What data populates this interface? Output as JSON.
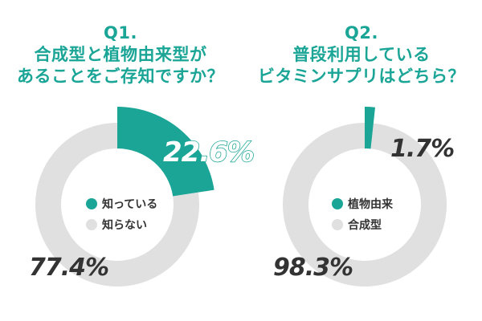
{
  "colors": {
    "accent": "#1aa596",
    "muted": "#e0e0e0",
    "text": "#333333"
  },
  "chart_data": [
    {
      "type": "pie",
      "title_lines": [
        "Q1.",
        "合成型と植物由来型が",
        "あることをご存知ですか？"
      ],
      "slices": [
        {
          "label": "知っている",
          "value": 22.6,
          "display": "22.6%",
          "color": "#1aa596"
        },
        {
          "label": "知らない",
          "value": 77.4,
          "display": "77.4%",
          "color": "#e0e0e0"
        }
      ]
    },
    {
      "type": "pie",
      "title_lines": [
        "Q2.",
        "普段利用している",
        "ビタミンサプリはどちら？"
      ],
      "slices": [
        {
          "label": "植物由来",
          "value": 1.7,
          "display": "1.7%",
          "color": "#1aa596"
        },
        {
          "label": "合成型",
          "value": 98.3,
          "display": "98.3%",
          "color": "#e0e0e0"
        }
      ]
    }
  ]
}
